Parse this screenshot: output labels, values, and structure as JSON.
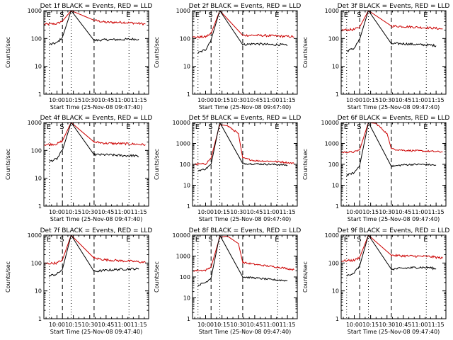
{
  "figure": {
    "xlabel": "Start Time (25-Nov-08 09:47:40)",
    "ylabel": "Counts/sec",
    "x_tick_labels": [
      "10:00",
      "10:15",
      "10:30",
      "10:45",
      "11:00",
      "11:15"
    ],
    "y_tick_labels": [
      "1",
      "10",
      "100",
      "1000"
    ],
    "y_tick_labels_extended": [
      "1",
      "10",
      "100",
      "1000",
      "10000"
    ],
    "marker_labels": [
      "E",
      "S",
      "E"
    ],
    "colors": {
      "events": "#000000",
      "lld": "#cc0000",
      "axes": "#000000",
      "background": "#ffffff"
    }
  },
  "chart_data": [
    {
      "type": "line",
      "title": "Det 1f BLACK = Events, RED = LLD",
      "xlabel": "Start Time (25-Nov-08 09:47:40)",
      "ylabel": "Counts/sec",
      "xlim": [
        "09:48",
        "11:24"
      ],
      "ylim": [
        1,
        1000
      ],
      "yscale": "log",
      "x_ticks": [
        "10:00",
        "10:15",
        "10:30",
        "10:45",
        "11:00",
        "11:15"
      ],
      "y_ticks": [
        "1",
        "10",
        "100",
        "1000"
      ],
      "markers": [
        {
          "label": "E",
          "x": "09:53",
          "style": "dotted"
        },
        {
          "label": "S",
          "x": "10:05",
          "style": "dashed"
        },
        {
          "label": "",
          "x": "10:13",
          "style": "dotted"
        },
        {
          "label": "",
          "x": "10:34",
          "style": "dashed"
        },
        {
          "label": "E",
          "x": "11:06",
          "style": "dotted"
        }
      ],
      "series": [
        {
          "name": "LLD",
          "color": "red",
          "x": [
            "09:48",
            "10:00",
            "10:05",
            "10:13",
            "10:34",
            "10:45",
            "11:00",
            "11:10",
            "11:21"
          ],
          "values": [
            320,
            340,
            420,
            1000,
            450,
            380,
            380,
            360,
            330
          ]
        },
        {
          "name": "Events",
          "color": "black",
          "x": [
            "09:53",
            "10:00",
            "10:05",
            "10:13",
            "10:34",
            "10:45",
            "11:00",
            "11:10",
            "11:15"
          ],
          "values": [
            60,
            70,
            110,
            1000,
            85,
            90,
            92,
            95,
            95
          ]
        }
      ]
    },
    {
      "type": "line",
      "title": "Det 2f BLACK = Events, RED = LLD",
      "xlabel": "Start Time (25-Nov-08 09:47:40)",
      "ylabel": "Counts/sec",
      "xlim": [
        "09:48",
        "11:24"
      ],
      "ylim": [
        1,
        1000
      ],
      "yscale": "log",
      "x_ticks": [
        "10:00",
        "10:15",
        "10:30",
        "10:45",
        "11:00",
        "11:15"
      ],
      "y_ticks": [
        "1",
        "10",
        "100",
        "1000"
      ],
      "markers": [
        {
          "label": "E",
          "x": "09:53",
          "style": "dotted"
        },
        {
          "label": "S",
          "x": "10:05",
          "style": "dashed"
        },
        {
          "label": "",
          "x": "10:13",
          "style": "dotted"
        },
        {
          "label": "",
          "x": "10:34",
          "style": "dashed"
        },
        {
          "label": "E",
          "x": "11:06",
          "style": "dotted"
        }
      ],
      "series": [
        {
          "name": "LLD",
          "color": "red",
          "x": [
            "09:48",
            "10:00",
            "10:05",
            "10:13",
            "10:34",
            "10:45",
            "11:00",
            "11:10",
            "11:21"
          ],
          "values": [
            110,
            115,
            150,
            1000,
            130,
            130,
            125,
            120,
            115
          ]
        },
        {
          "name": "Events",
          "color": "black",
          "x": [
            "09:53",
            "10:00",
            "10:05",
            "10:13",
            "10:34",
            "10:45",
            "11:00",
            "11:10",
            "11:15"
          ],
          "values": [
            30,
            40,
            90,
            1000,
            60,
            65,
            60,
            60,
            55
          ]
        }
      ]
    },
    {
      "type": "line",
      "title": "Det 3f BLACK = Events, RED = LLD",
      "xlabel": "Start Time (25-Nov-08 09:47:40)",
      "ylabel": "Counts/sec",
      "xlim": [
        "09:48",
        "11:24"
      ],
      "ylim": [
        1,
        1000
      ],
      "yscale": "log",
      "x_ticks": [
        "10:00",
        "10:15",
        "10:30",
        "10:45",
        "11:00",
        "11:15"
      ],
      "y_ticks": [
        "1",
        "10",
        "100",
        "1000"
      ],
      "markers": [
        {
          "label": "E",
          "x": "09:53",
          "style": "dotted"
        },
        {
          "label": "S",
          "x": "10:05",
          "style": "dashed"
        },
        {
          "label": "",
          "x": "10:13",
          "style": "dotted"
        },
        {
          "label": "",
          "x": "10:34",
          "style": "dashed"
        },
        {
          "label": "E",
          "x": "11:06",
          "style": "dotted"
        }
      ],
      "series": [
        {
          "name": "LLD",
          "color": "red",
          "x": [
            "09:48",
            "10:00",
            "10:05",
            "10:13",
            "10:34",
            "10:45",
            "11:00",
            "11:10",
            "11:21"
          ],
          "values": [
            200,
            210,
            260,
            1000,
            280,
            270,
            250,
            240,
            220
          ]
        },
        {
          "name": "Events",
          "color": "black",
          "x": [
            "09:53",
            "10:00",
            "10:05",
            "10:13",
            "10:34",
            "10:45",
            "11:00",
            "11:10",
            "11:15"
          ],
          "values": [
            35,
            45,
            95,
            1000,
            65,
            65,
            60,
            58,
            55
          ]
        }
      ]
    },
    {
      "type": "line",
      "title": "Det 4f BLACK = Events, RED = LLD",
      "xlabel": "Start Time (25-Nov-08 09:47:40)",
      "ylabel": "Counts/sec",
      "xlim": [
        "09:48",
        "11:24"
      ],
      "ylim": [
        1,
        1000
      ],
      "yscale": "log",
      "x_ticks": [
        "10:00",
        "10:15",
        "10:30",
        "10:45",
        "11:00",
        "11:15"
      ],
      "y_ticks": [
        "1",
        "10",
        "100",
        "1000"
      ],
      "markers": [
        {
          "label": "E",
          "x": "09:53",
          "style": "dotted"
        },
        {
          "label": "S",
          "x": "10:05",
          "style": "dashed"
        },
        {
          "label": "",
          "x": "10:13",
          "style": "dotted"
        },
        {
          "label": "",
          "x": "10:34",
          "style": "dashed"
        },
        {
          "label": "E",
          "x": "11:06",
          "style": "dotted"
        }
      ],
      "series": [
        {
          "name": "LLD",
          "color": "red",
          "x": [
            "09:48",
            "10:00",
            "10:05",
            "10:13",
            "10:34",
            "10:45",
            "11:00",
            "11:10",
            "11:21"
          ],
          "values": [
            160,
            170,
            220,
            1000,
            200,
            180,
            175,
            170,
            160
          ]
        },
        {
          "name": "Events",
          "color": "black",
          "x": [
            "09:53",
            "10:00",
            "10:05",
            "10:13",
            "10:34",
            "10:45",
            "11:00",
            "11:10",
            "11:15"
          ],
          "values": [
            40,
            50,
            100,
            1000,
            70,
            70,
            65,
            65,
            60
          ]
        }
      ]
    },
    {
      "type": "line",
      "title": "Det 5f BLACK = Events, RED = LLD",
      "xlabel": "Start Time (25-Nov-08 09:47:40)",
      "ylabel": "Counts/sec",
      "xlim": [
        "09:48",
        "11:24"
      ],
      "ylim": [
        1,
        10000
      ],
      "yscale": "log",
      "x_ticks": [
        "10:00",
        "10:15",
        "10:30",
        "10:45",
        "11:00",
        "11:15"
      ],
      "y_ticks": [
        "1",
        "10",
        "100",
        "1000",
        "10000"
      ],
      "markers": [
        {
          "label": "E",
          "x": "09:53",
          "style": "dotted"
        },
        {
          "label": "S",
          "x": "10:05",
          "style": "dashed"
        },
        {
          "label": "",
          "x": "10:13",
          "style": "dotted"
        },
        {
          "label": "",
          "x": "10:34",
          "style": "dashed"
        },
        {
          "label": "E",
          "x": "11:06",
          "style": "dotted"
        }
      ],
      "series": [
        {
          "name": "LLD",
          "color": "red",
          "x": [
            "09:48",
            "10:00",
            "10:05",
            "10:13",
            "10:20",
            "10:30",
            "10:34",
            "10:45",
            "11:00",
            "11:10",
            "11:21"
          ],
          "values": [
            100,
            105,
            200,
            8000,
            7000,
            3000,
            200,
            150,
            140,
            130,
            110
          ]
        },
        {
          "name": "Events",
          "color": "black",
          "x": [
            "09:53",
            "10:00",
            "10:05",
            "10:13",
            "10:34",
            "10:45",
            "11:00",
            "11:10",
            "11:15"
          ],
          "values": [
            50,
            60,
            100,
            10000,
            110,
            105,
            100,
            95,
            90
          ]
        }
      ]
    },
    {
      "type": "line",
      "title": "Det 6f BLACK = Events, RED = LLD",
      "xlabel": "Start Time (25-Nov-08 09:47:40)",
      "ylabel": "Counts/sec",
      "xlim": [
        "09:48",
        "11:24"
      ],
      "ylim": [
        1,
        10000
      ],
      "yscale": "log",
      "x_ticks": [
        "10:00",
        "10:15",
        "10:30",
        "10:45",
        "11:00",
        "11:15"
      ],
      "y_ticks": [
        "1",
        "10",
        "100",
        "1000",
        "10000"
      ],
      "markers": [
        {
          "label": "E",
          "x": "09:53",
          "style": "dotted"
        },
        {
          "label": "S",
          "x": "10:05",
          "style": "dashed"
        },
        {
          "label": "",
          "x": "10:13",
          "style": "dotted"
        },
        {
          "label": "",
          "x": "10:34",
          "style": "dashed"
        },
        {
          "label": "E",
          "x": "11:06",
          "style": "dotted"
        }
      ],
      "series": [
        {
          "name": "LLD",
          "color": "red",
          "x": [
            "09:48",
            "10:00",
            "10:05",
            "10:13",
            "10:20",
            "10:30",
            "10:34",
            "10:45",
            "11:00",
            "11:10",
            "11:21"
          ],
          "values": [
            380,
            390,
            500,
            10000,
            9000,
            3000,
            550,
            470,
            440,
            420,
            390
          ]
        },
        {
          "name": "Events",
          "color": "black",
          "x": [
            "09:53",
            "10:00",
            "10:05",
            "10:13",
            "10:34",
            "10:45",
            "11:00",
            "11:10",
            "11:15"
          ],
          "values": [
            30,
            40,
            90,
            10000,
            80,
            95,
            100,
            95,
            90
          ]
        }
      ]
    },
    {
      "type": "line",
      "title": "Det 7f BLACK = Events, RED = LLD",
      "xlabel": "Start Time (25-Nov-08 09:47:40)",
      "ylabel": "Counts/sec",
      "xlim": [
        "09:48",
        "11:24"
      ],
      "ylim": [
        1,
        1000
      ],
      "yscale": "log",
      "x_ticks": [
        "10:00",
        "10:15",
        "10:30",
        "10:45",
        "11:00",
        "11:15"
      ],
      "y_ticks": [
        "1",
        "10",
        "100",
        "1000"
      ],
      "markers": [
        {
          "label": "E",
          "x": "09:53",
          "style": "dotted"
        },
        {
          "label": "S",
          "x": "10:05",
          "style": "dashed"
        },
        {
          "label": "",
          "x": "10:13",
          "style": "dotted"
        },
        {
          "label": "",
          "x": "10:34",
          "style": "dashed"
        },
        {
          "label": "E",
          "x": "11:06",
          "style": "dotted"
        }
      ],
      "series": [
        {
          "name": "LLD",
          "color": "red",
          "x": [
            "09:48",
            "10:00",
            "10:05",
            "10:13",
            "10:34",
            "10:45",
            "11:00",
            "11:10",
            "11:21"
          ],
          "values": [
            95,
            100,
            130,
            1000,
            150,
            130,
            120,
            115,
            105
          ]
        },
        {
          "name": "Events",
          "color": "black",
          "x": [
            "09:53",
            "10:00",
            "10:05",
            "10:13",
            "10:34",
            "10:45",
            "11:00",
            "11:10",
            "11:15"
          ],
          "values": [
            35,
            40,
            60,
            1000,
            50,
            55,
            60,
            62,
            60
          ]
        }
      ]
    },
    {
      "type": "line",
      "title": "Det 8f BLACK = Events, RED = LLD",
      "xlabel": "Start Time (25-Nov-08 09:47:40)",
      "ylabel": "Counts/sec",
      "xlim": [
        "09:48",
        "11:24"
      ],
      "ylim": [
        1,
        10000
      ],
      "yscale": "log",
      "x_ticks": [
        "10:00",
        "10:15",
        "10:30",
        "10:45",
        "11:00",
        "11:15"
      ],
      "y_ticks": [
        "1",
        "10",
        "100",
        "1000",
        "10000"
      ],
      "markers": [
        {
          "label": "E",
          "x": "09:53",
          "style": "dotted"
        },
        {
          "label": "S",
          "x": "10:05",
          "style": "dashed"
        },
        {
          "label": "",
          "x": "10:13",
          "style": "dotted"
        },
        {
          "label": "",
          "x": "10:34",
          "style": "dashed"
        },
        {
          "label": "E",
          "x": "11:06",
          "style": "dotted"
        }
      ],
      "series": [
        {
          "name": "LLD",
          "color": "red",
          "x": [
            "09:48",
            "10:00",
            "10:05",
            "10:13",
            "10:20",
            "10:30",
            "10:34",
            "10:45",
            "11:00",
            "11:10",
            "11:21"
          ],
          "values": [
            200,
            210,
            300,
            8000,
            9000,
            4000,
            500,
            400,
            320,
            280,
            220
          ]
        },
        {
          "name": "Events",
          "color": "black",
          "x": [
            "09:53",
            "10:00",
            "10:05",
            "10:13",
            "10:34",
            "10:45",
            "11:00",
            "11:10",
            "11:15"
          ],
          "values": [
            40,
            55,
            90,
            10000,
            100,
            90,
            75,
            70,
            65
          ]
        }
      ]
    },
    {
      "type": "line",
      "title": "Det 9f BLACK = Events, RED = LLD",
      "xlabel": "Start Time (25-Nov-08 09:47:40)",
      "ylabel": "Counts/sec",
      "xlim": [
        "09:48",
        "11:24"
      ],
      "ylim": [
        1,
        1000
      ],
      "yscale": "log",
      "x_ticks": [
        "10:00",
        "10:15",
        "10:30",
        "10:45",
        "11:00",
        "11:15"
      ],
      "y_ticks": [
        "1",
        "10",
        "100",
        "1000"
      ],
      "markers": [
        {
          "label": "E",
          "x": "09:53",
          "style": "dotted"
        },
        {
          "label": "S",
          "x": "10:05",
          "style": "dashed"
        },
        {
          "label": "",
          "x": "10:13",
          "style": "dotted"
        },
        {
          "label": "",
          "x": "10:34",
          "style": "dashed"
        },
        {
          "label": "E",
          "x": "11:06",
          "style": "dotted"
        }
      ],
      "series": [
        {
          "name": "LLD",
          "color": "red",
          "x": [
            "09:48",
            "10:00",
            "10:05",
            "10:13",
            "10:34",
            "10:45",
            "11:00",
            "11:10",
            "11:21"
          ],
          "values": [
            120,
            125,
            160,
            1000,
            190,
            180,
            175,
            170,
            150
          ]
        },
        {
          "name": "Events",
          "color": "black",
          "x": [
            "09:53",
            "10:00",
            "10:05",
            "10:13",
            "10:34",
            "10:45",
            "11:00",
            "11:10",
            "11:15"
          ],
          "values": [
            35,
            45,
            80,
            1000,
            60,
            65,
            70,
            68,
            60
          ]
        }
      ]
    }
  ]
}
